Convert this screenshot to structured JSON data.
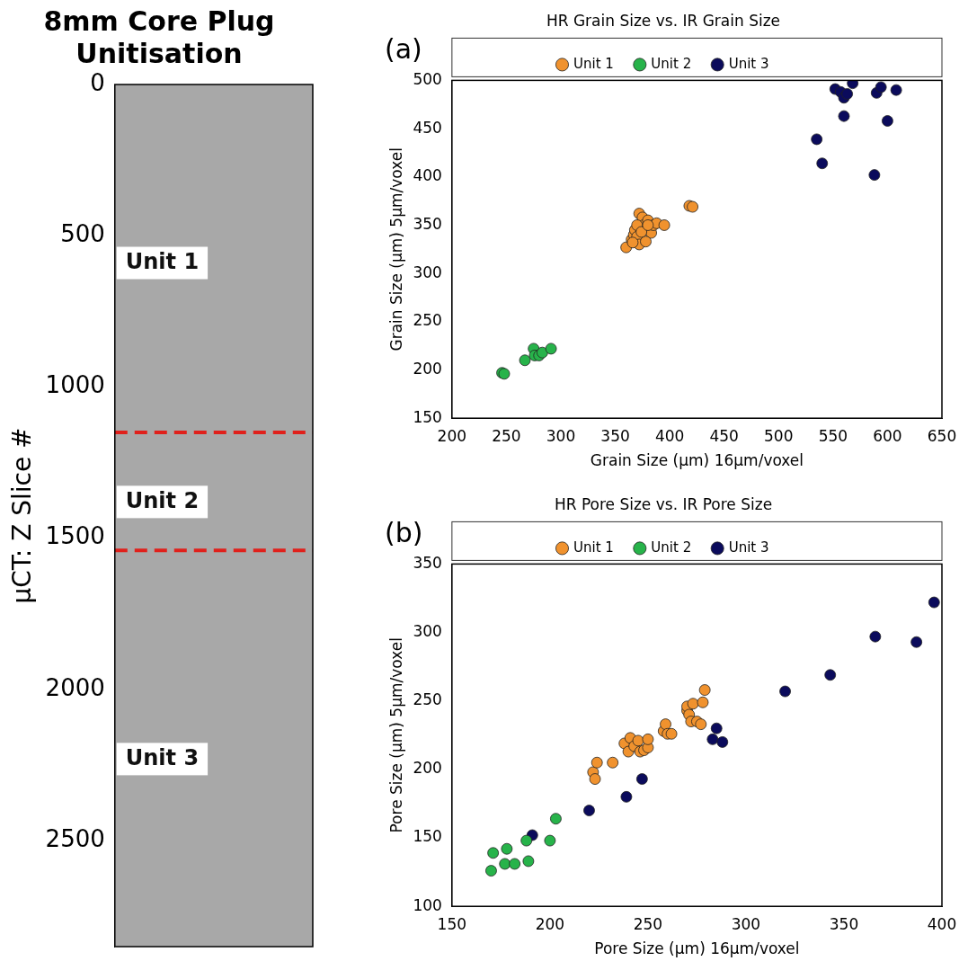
{
  "chart_data": [
    {
      "type": "image",
      "title": "8mm Core Plug Unitisation",
      "ylabel": "μCT: Z Slice #",
      "ylim": [
        0,
        2850
      ],
      "yticks": [
        0,
        500,
        1000,
        1500,
        2000,
        2500
      ],
      "boundaries": [
        1150,
        1540
      ],
      "annotations": [
        {
          "text": "Unit 1",
          "y": 590
        },
        {
          "text": "Unit 2",
          "y": 1380
        },
        {
          "text": "Unit 3",
          "y": 2230
        }
      ]
    },
    {
      "type": "scatter",
      "panel_label": "(a)",
      "title": "HR Grain Size vs. IR Grain Size",
      "xlabel": "Grain Size (μm) 16μm/voxel",
      "ylabel": "Grain Size (μm) 5μm/voxel",
      "xlim": [
        200,
        650
      ],
      "xticks": [
        200,
        250,
        300,
        350,
        400,
        450,
        500,
        550,
        600,
        650
      ],
      "ylim": [
        150,
        500
      ],
      "yticks": [
        150,
        200,
        250,
        300,
        350,
        400,
        450,
        500
      ],
      "legend": "top",
      "series": [
        {
          "name": "Unit 1",
          "color": "#f0922e",
          "marker": "circle",
          "x": [
            360,
            365,
            367,
            368,
            370,
            372,
            373,
            372,
            375,
            376,
            378,
            380,
            382,
            383,
            385,
            378,
            388,
            395,
            370,
            374,
            418,
            421,
            366,
            380
          ],
          "values": [
            327,
            335,
            340,
            345,
            338,
            330,
            348,
            362,
            358,
            350,
            345,
            355,
            348,
            342,
            350,
            333,
            352,
            350,
            350,
            343,
            370,
            369,
            332,
            350
          ]
        },
        {
          "name": "Unit 2",
          "color": "#27b34a",
          "marker": "circle",
          "x": [
            246,
            248,
            267,
            275,
            276,
            280,
            283,
            291
          ],
          "values": [
            197,
            196,
            210,
            222,
            215,
            215,
            218,
            222
          ]
        },
        {
          "name": "Unit 3",
          "color": "#0b0b5c",
          "marker": "circle",
          "x": [
            535,
            540,
            552,
            557,
            560,
            560,
            563,
            568,
            588,
            590,
            594,
            600,
            608
          ],
          "values": [
            439,
            414,
            491,
            488,
            463,
            482,
            486,
            497,
            402,
            487,
            493,
            458,
            490
          ]
        }
      ]
    },
    {
      "type": "scatter",
      "panel_label": "(b)",
      "title": "HR Pore Size vs. IR Pore Size",
      "xlabel": "Pore Size (μm) 16μm/voxel",
      "ylabel": "Pore Size (μm) 5μm/voxel",
      "xlim": [
        150,
        400
      ],
      "xticks": [
        150,
        200,
        250,
        300,
        350,
        400
      ],
      "ylim": [
        100,
        350
      ],
      "yticks": [
        100,
        150,
        200,
        250,
        300,
        350
      ],
      "legend": "top",
      "series": [
        {
          "name": "Unit 1",
          "color": "#f0922e",
          "marker": "circle",
          "x": [
            222,
            223,
            224,
            232,
            238,
            240,
            241,
            243,
            245,
            246,
            248,
            250,
            250,
            258,
            259,
            260,
            262,
            270,
            270,
            271,
            272,
            273,
            275,
            277,
            278,
            279
          ],
          "values": [
            198,
            193,
            205,
            205,
            219,
            213,
            223,
            217,
            221,
            213,
            214,
            216,
            222,
            228,
            233,
            226,
            226,
            243,
            246,
            240,
            235,
            248,
            235,
            233,
            249,
            258
          ]
        },
        {
          "name": "Unit 2",
          "color": "#27b34a",
          "marker": "circle",
          "x": [
            170,
            171,
            177,
            178,
            182,
            188,
            189,
            200,
            203
          ],
          "values": [
            126,
            139,
            131,
            142,
            131,
            148,
            133,
            148,
            164
          ]
        },
        {
          "name": "Unit 3",
          "color": "#0b0b5c",
          "marker": "circle",
          "x": [
            191,
            220,
            239,
            247,
            283,
            285,
            288,
            320,
            343,
            366,
            387,
            396
          ],
          "values": [
            152,
            170,
            180,
            193,
            222,
            230,
            220,
            257,
            269,
            297,
            293,
            322
          ]
        }
      ]
    }
  ]
}
